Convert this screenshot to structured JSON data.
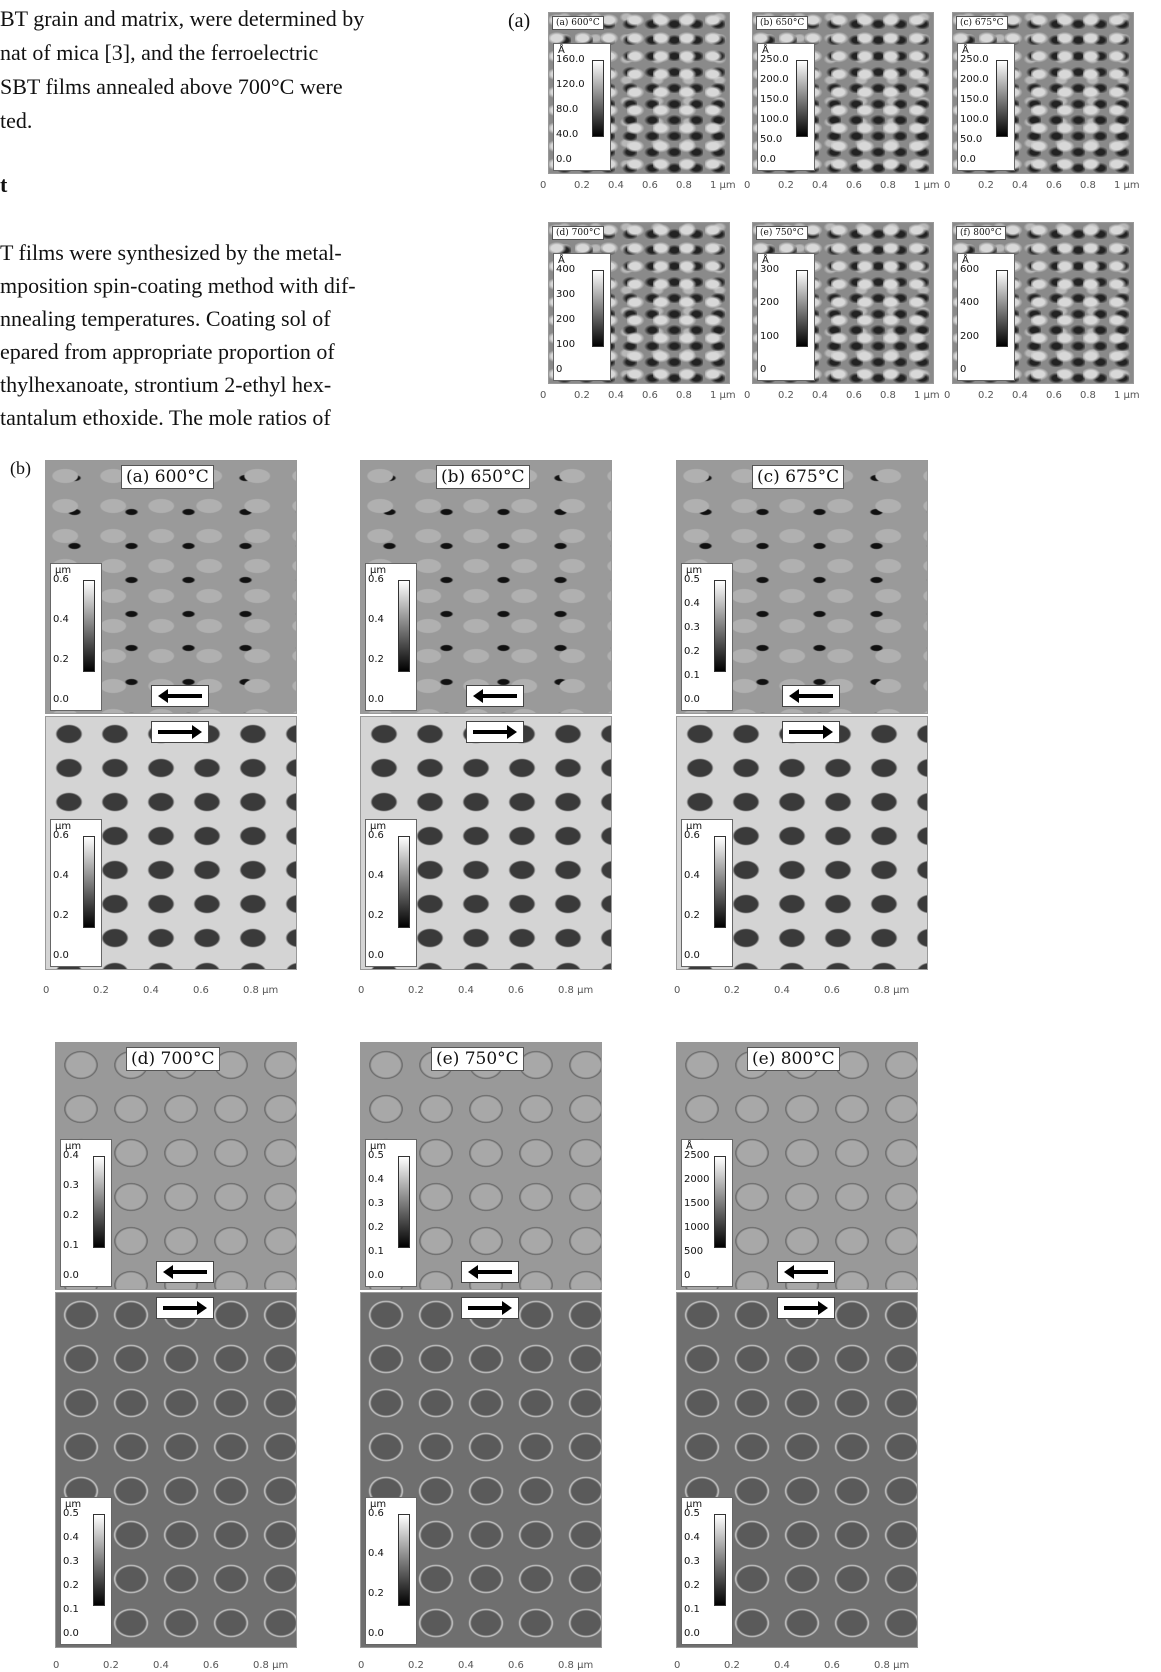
{
  "text": {
    "lines": [
      "BT grain and matrix, were determined by",
      "nat of mica [3], and the ferroelectric",
      "SBT films annealed above 700°C were",
      "ted."
    ],
    "heading": "t",
    "paragraph": [
      "T films were synthesized by the metal-",
      "mposition spin-coating method with dif-",
      "nnealing temperatures. Coating sol of",
      "epared from appropriate proportion of",
      "thylhexanoate, strontium 2-ethyl hex-",
      "tantalum ethoxide. The mole ratios of"
    ]
  },
  "figure_a": {
    "label": "(a)",
    "x_axis": [
      "0",
      "0.2",
      "0.4",
      "0.6",
      "0.8",
      "1 µm"
    ],
    "panels": [
      {
        "title": "(a) 600°C",
        "unit": "Å",
        "scale": [
          "160.0",
          "120.0",
          "80.0",
          "40.0",
          "0.0"
        ]
      },
      {
        "title": "(b) 650°C",
        "unit": "Å",
        "scale": [
          "250.0",
          "200.0",
          "150.0",
          "100.0",
          "50.0",
          "0.0"
        ]
      },
      {
        "title": "(c) 675°C",
        "unit": "Å",
        "scale": [
          "250.0",
          "200.0",
          "150.0",
          "100.0",
          "50.0",
          "0.0"
        ]
      },
      {
        "title": "(d) 700°C",
        "unit": "Å",
        "scale": [
          "400",
          "300",
          "200",
          "100",
          "0"
        ]
      },
      {
        "title": "(e) 750°C",
        "unit": "Å",
        "scale": [
          "300",
          "200",
          "100",
          "0"
        ]
      },
      {
        "title": "(f) 800°C",
        "unit": "Å",
        "scale": [
          "600",
          "400",
          "200",
          "0"
        ]
      }
    ]
  },
  "figure_b": {
    "label": "(b)",
    "x_axis": [
      "0",
      "0.2",
      "0.4",
      "0.6",
      "0.8 µm"
    ],
    "panels": [
      {
        "title": "(a) 600°C",
        "top_unit": "µm",
        "top_scale": [
          "0.6",
          "0.4",
          "0.2",
          "0.0"
        ],
        "bottom_unit": "µm",
        "bottom_scale": [
          "0.6",
          "0.4",
          "0.2",
          "0.0"
        ]
      },
      {
        "title": "(b) 650°C",
        "top_unit": "µm",
        "top_scale": [
          "0.6",
          "0.4",
          "0.2",
          "0.0"
        ],
        "bottom_unit": "µm",
        "bottom_scale": [
          "0.6",
          "0.4",
          "0.2",
          "0.0"
        ]
      },
      {
        "title": "(c) 675°C",
        "top_unit": "µm",
        "top_scale": [
          "0.5",
          "0.4",
          "0.3",
          "0.2",
          "0.1",
          "0.0"
        ],
        "bottom_unit": "µm",
        "bottom_scale": [
          "0.6",
          "0.4",
          "0.2",
          "0.0"
        ]
      },
      {
        "title": "(d) 700°C",
        "top_unit": "µm",
        "top_scale": [
          "0.4",
          "0.3",
          "0.2",
          "0.1",
          "0.0"
        ],
        "bottom_unit": "µm",
        "bottom_scale": [
          "0.5",
          "0.4",
          "0.3",
          "0.2",
          "0.1",
          "0.0"
        ]
      },
      {
        "title": "(e) 750°C",
        "top_unit": "µm",
        "top_scale": [
          "0.5",
          "0.4",
          "0.3",
          "0.2",
          "0.1",
          "0.0"
        ],
        "bottom_unit": "µm",
        "bottom_scale": [
          "0.6",
          "0.4",
          "0.2",
          "0.0"
        ]
      },
      {
        "title": "(e) 800°C",
        "top_unit": "Å",
        "top_scale": [
          "2500",
          "2000",
          "1500",
          "1000",
          "500",
          "0"
        ],
        "bottom_unit": "µm",
        "bottom_scale": [
          "0.5",
          "0.4",
          "0.3",
          "0.2",
          "0.1",
          "0.0"
        ]
      }
    ]
  }
}
